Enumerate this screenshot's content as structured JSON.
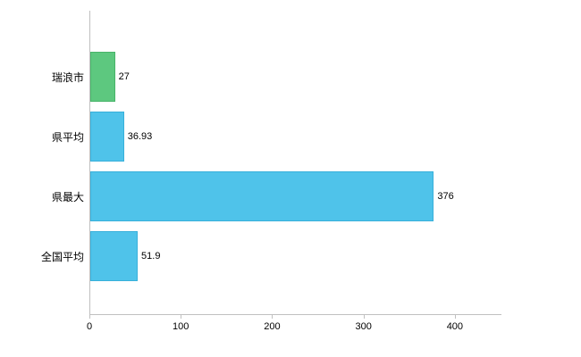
{
  "chart_data": {
    "type": "bar",
    "orientation": "horizontal",
    "title": "",
    "categories": [
      "瑞浪市",
      "県平均",
      "県最大",
      "全国平均"
    ],
    "values": [
      27,
      36.93,
      376,
      51.9
    ],
    "value_labels": [
      "27",
      "36.93",
      "376",
      "51.9"
    ],
    "bar_colors": [
      "#5dc87f",
      "#4fc3ea",
      "#4fc3ea",
      "#4fc3ea"
    ],
    "bar_border_colors": [
      "#48b469",
      "#38b0da",
      "#38b0da",
      "#38b0da"
    ],
    "xlim": [
      0,
      450
    ],
    "x_ticks": [
      0,
      100,
      200,
      300,
      400
    ],
    "grid": false,
    "legend": "none",
    "axis_color": "#c0c0c0",
    "text_color": "#000000",
    "background": "#ffffff"
  }
}
